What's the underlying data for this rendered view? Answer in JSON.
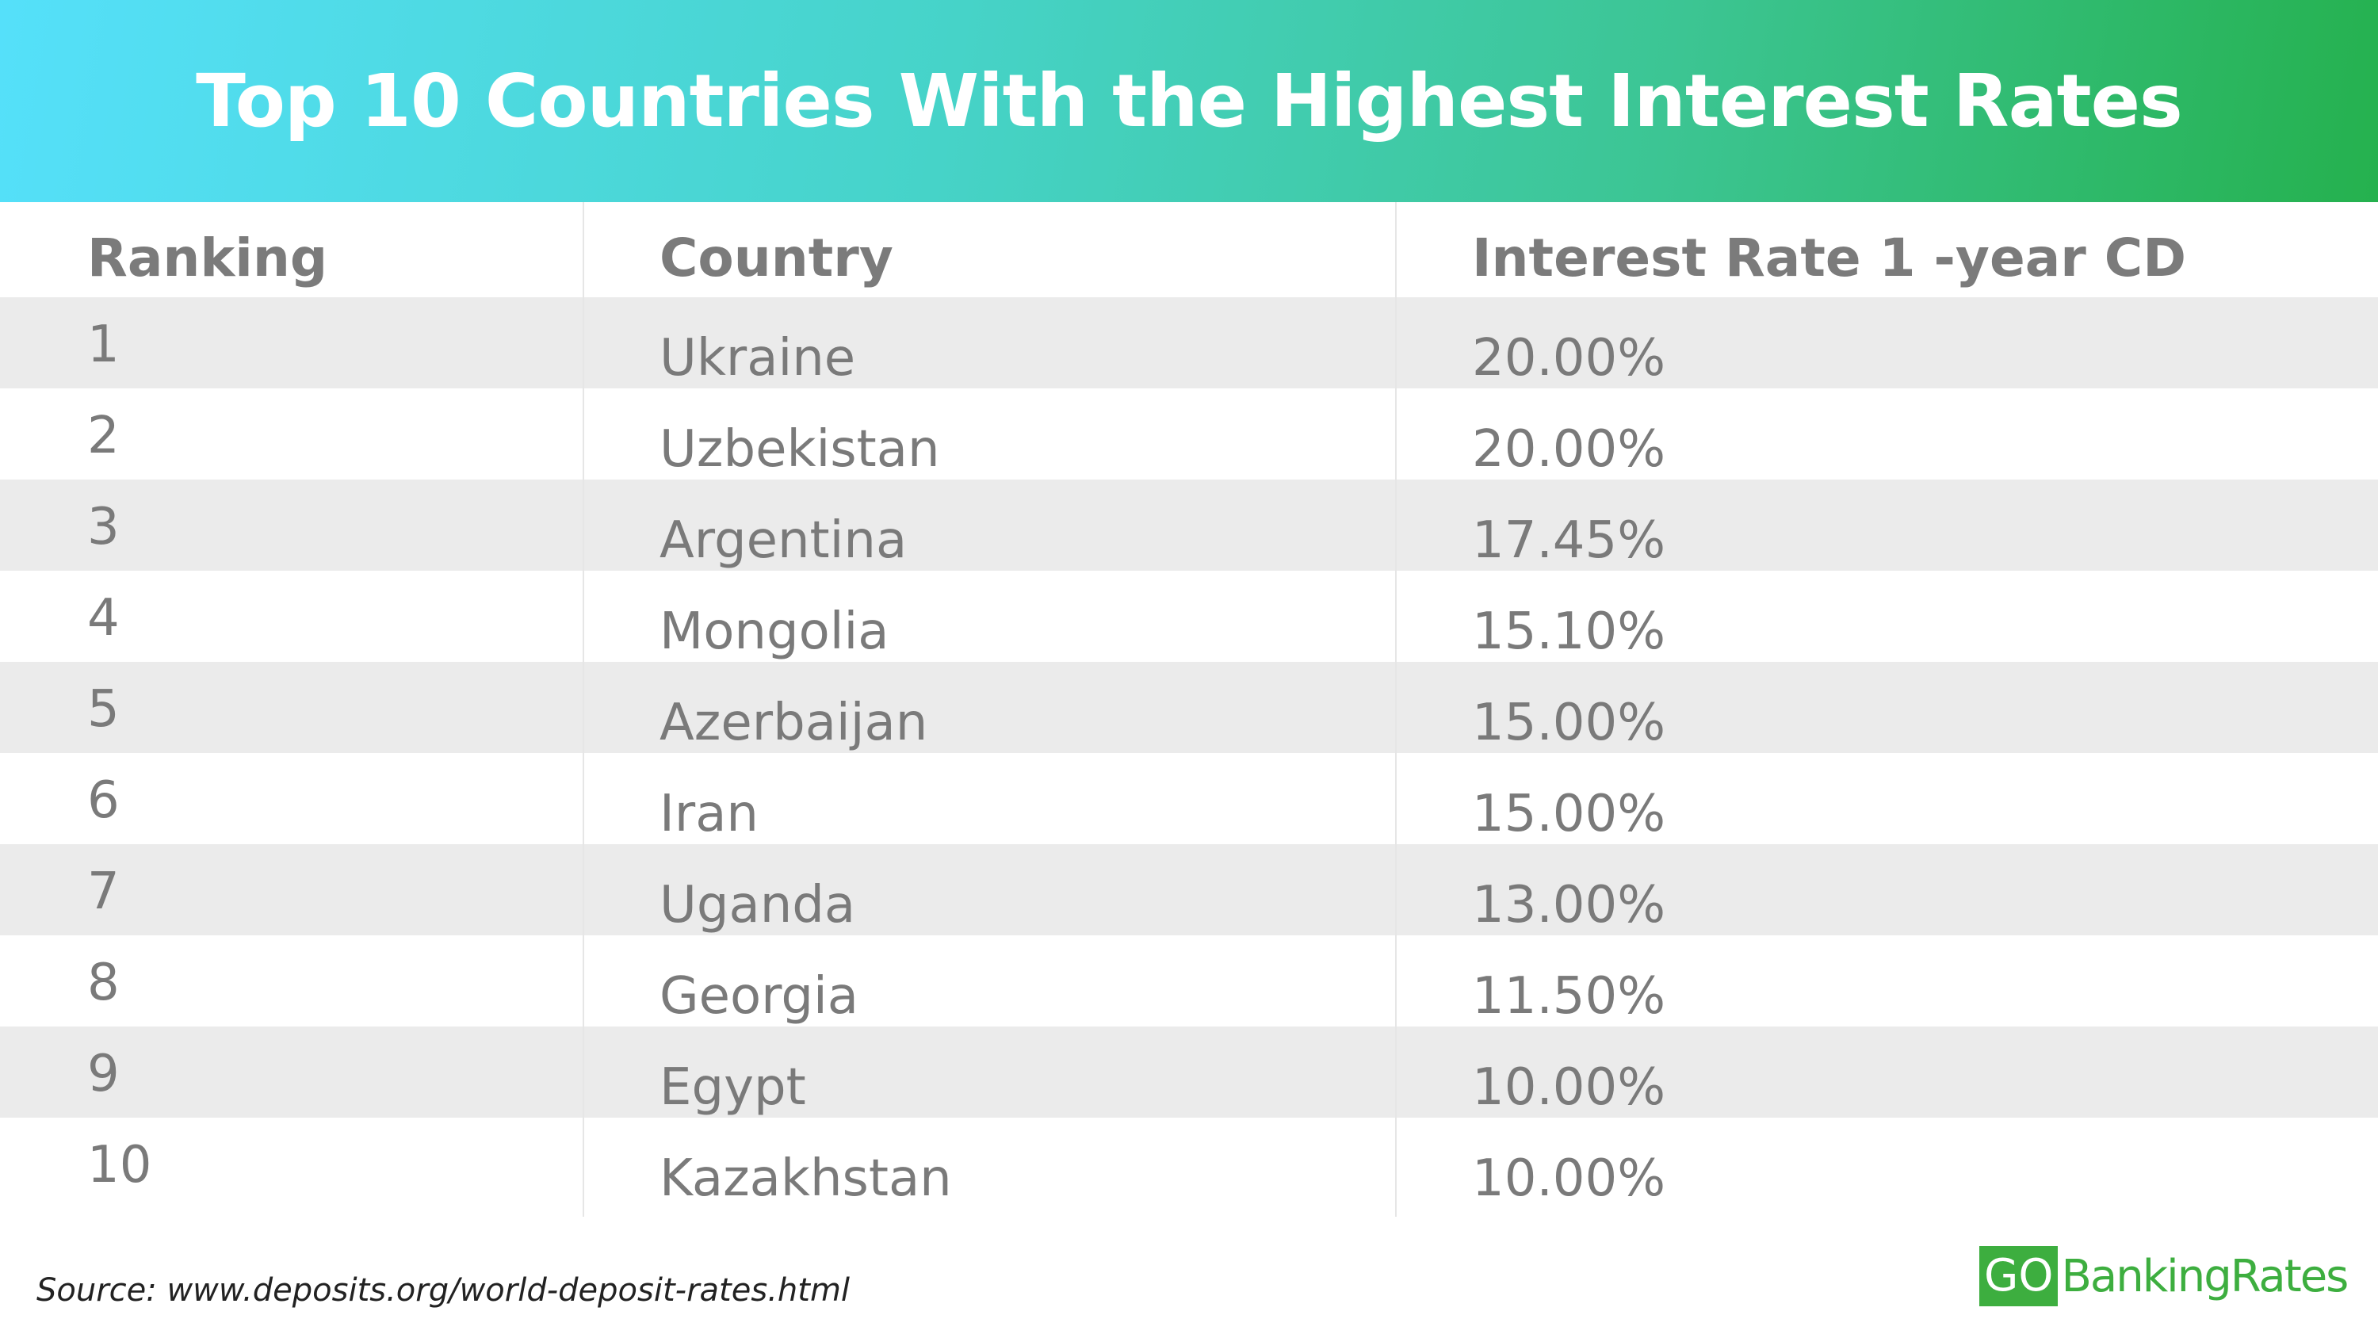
{
  "title": "Top 10 Countries With the Highest Interest Rates",
  "table": {
    "headers": {
      "ranking": "Ranking",
      "country": "Country",
      "rate": "Interest Rate 1 -year CD"
    },
    "rows": [
      {
        "rank": "1",
        "country": "Ukraine",
        "rate": "20.00%"
      },
      {
        "rank": "2",
        "country": "Uzbekistan",
        "rate": "20.00%"
      },
      {
        "rank": "3",
        "country": "Argentina",
        "rate": "17.45%"
      },
      {
        "rank": "4",
        "country": "Mongolia",
        "rate": "15.10%"
      },
      {
        "rank": "5",
        "country": "Azerbaijan",
        "rate": "15.00%"
      },
      {
        "rank": "6",
        "country": "Iran",
        "rate": "15.00%"
      },
      {
        "rank": "7",
        "country": "Uganda",
        "rate": "13.00%"
      },
      {
        "rank": "8",
        "country": "Georgia",
        "rate": "11.50%"
      },
      {
        "rank": "9",
        "country": "Egypt",
        "rate": "10.00%"
      },
      {
        "rank": "10",
        "country": "Kazakhstan",
        "rate": "10.00%"
      }
    ]
  },
  "source": "Source: www.deposits.org/world-deposit-rates.html",
  "logo": {
    "go": "GO",
    "banking_rates": "BankingRates"
  },
  "colors": {
    "banner_start": "#55e0fa",
    "banner_end": "#25b14e",
    "row_shade": "#ebebeb",
    "text_gray": "#7a7a7a",
    "logo_green": "#3dae3f"
  }
}
